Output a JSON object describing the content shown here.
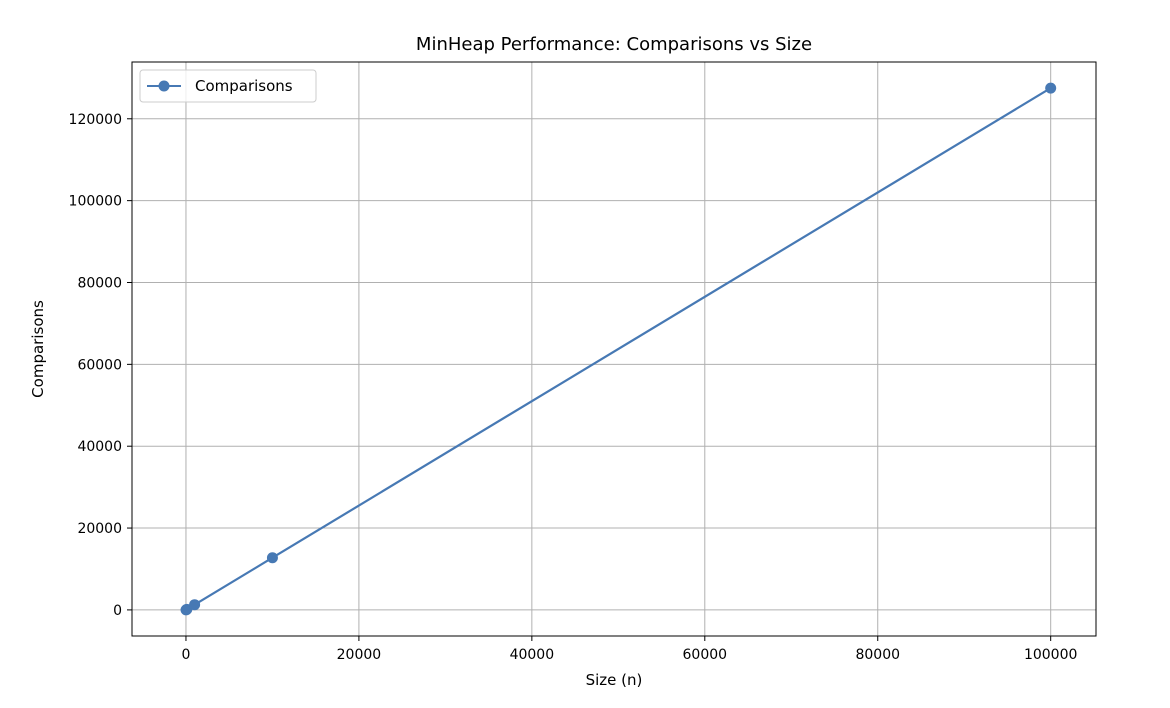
{
  "chart_data": {
    "type": "line",
    "title": "MinHeap Performance: Comparisons vs Size",
    "xlabel": "Size (n)",
    "ylabel": "Comparisons",
    "xlim": [
      -6240,
      105240
    ],
    "ylim": [
      -6375,
      133875
    ],
    "xticks": [
      0,
      20000,
      40000,
      60000,
      80000,
      100000
    ],
    "yticks": [
      0,
      20000,
      40000,
      60000,
      80000,
      100000,
      120000
    ],
    "grid": true,
    "legend_position": "top-left",
    "series": [
      {
        "name": "Comparisons",
        "color": "#4779b4",
        "marker": "circle",
        "x": [
          10,
          100,
          1000,
          10000,
          100000
        ],
        "y": [
          12,
          127,
          1275,
          12750,
          127500
        ]
      }
    ]
  }
}
